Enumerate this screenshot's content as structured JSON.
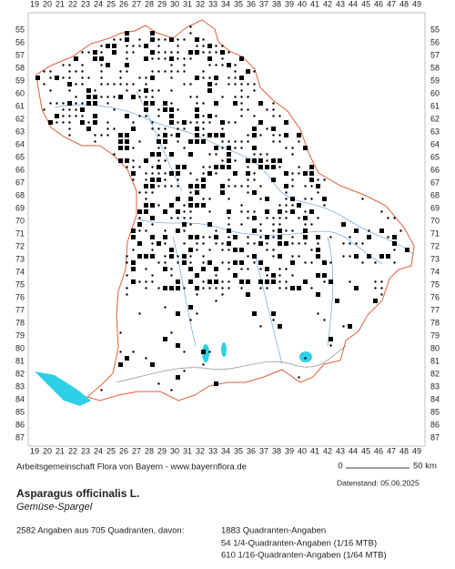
{
  "map": {
    "column_labels": [
      19,
      20,
      21,
      22,
      23,
      24,
      25,
      26,
      27,
      28,
      29,
      30,
      31,
      32,
      33,
      34,
      35,
      36,
      37,
      38,
      39,
      40,
      41,
      42,
      43,
      44,
      45,
      46,
      47,
      48,
      49
    ],
    "row_labels": [
      55,
      56,
      57,
      58,
      59,
      60,
      61,
      62,
      63,
      64,
      65,
      66,
      67,
      68,
      69,
      70,
      71,
      72,
      73,
      74,
      75,
      76,
      77,
      78,
      79,
      80,
      81,
      82,
      83,
      84,
      85,
      86,
      87
    ]
  },
  "footer": {
    "credit": "Arbeitsgemeinschaft Flora von Bayern - www.bayernflora.de",
    "scale_start": "0",
    "scale_end": "50 km",
    "date": "Datenstand: 05.06.2025",
    "species": "Asparagus officinalis L.",
    "common_name": "Gemüse-Spargel",
    "summary": "2582 Angaben aus 705 Quadranten, davon:",
    "breakdown": [
      "1883 Quadranten-Angaben",
      "54 1/4-Quadranten-Angaben (1/16 MTB)",
      "610 1/16-Quadranten-Angaben (1/64 MTB)"
    ]
  }
}
